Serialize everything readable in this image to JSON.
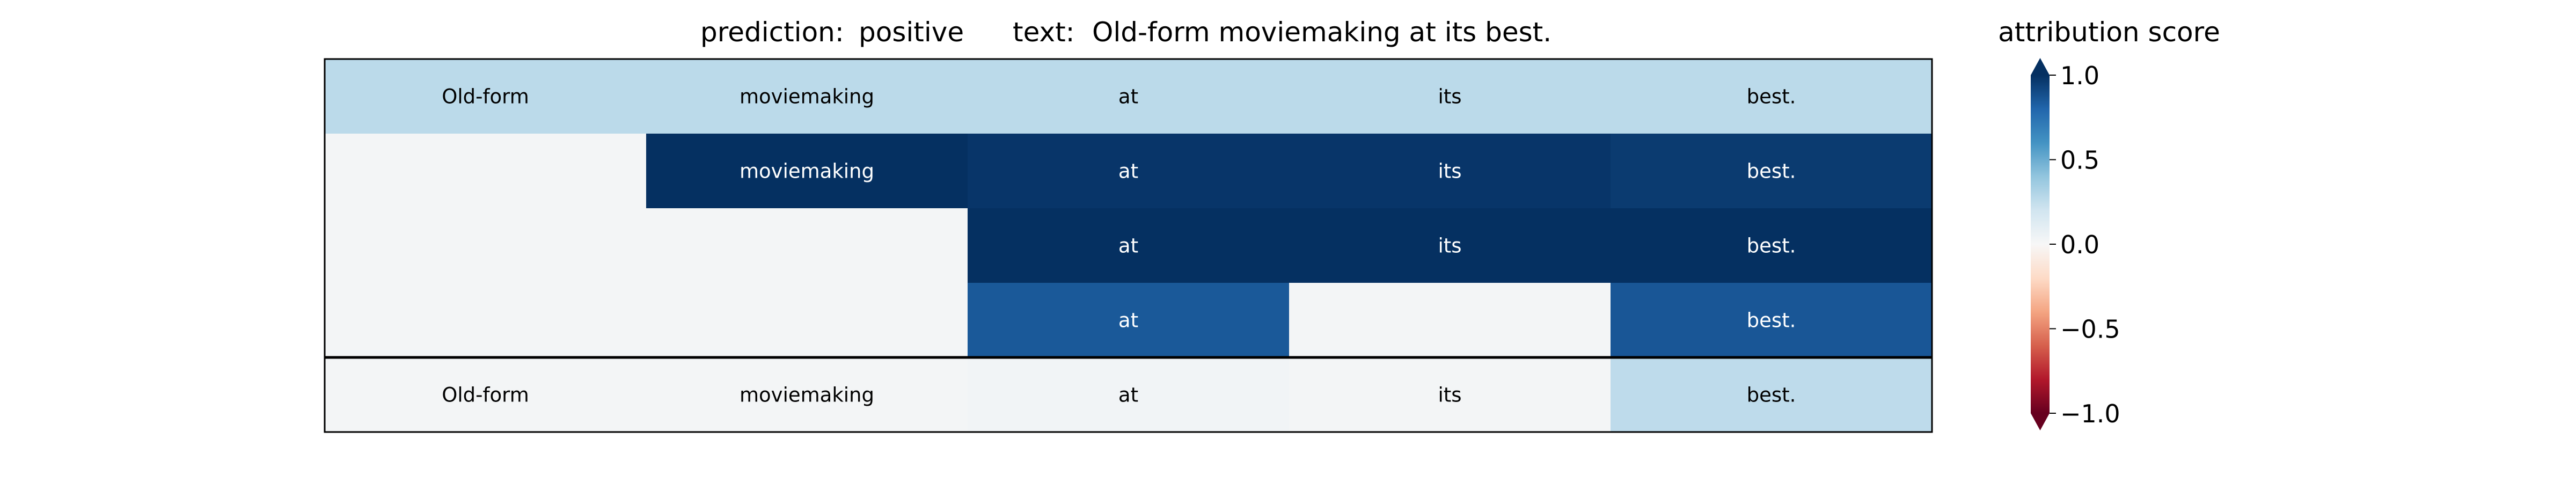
{
  "title": {
    "prediction_label": "prediction:",
    "prediction_value": "positive",
    "text_label": "text:",
    "text_value": "Old-form moviemaking at its best."
  },
  "colorbar": {
    "title": "attribution score",
    "cmap": "RdBu",
    "range": [
      -1.0,
      1.0
    ],
    "ticks": [
      "1.0",
      "0.5",
      "0.0",
      "−0.5",
      "−1.0"
    ],
    "tick_values": [
      1.0,
      0.5,
      0.0,
      -0.5,
      -1.0
    ],
    "extend": "both"
  },
  "chart_data": {
    "type": "heatmap",
    "tokens": [
      "Old-form",
      "moviemaking",
      "at",
      "its",
      "best."
    ],
    "rows": [
      {
        "values": [
          0.27,
          0.27,
          0.27,
          0.27,
          0.27
        ],
        "labels": [
          "Old-form",
          "moviemaking",
          "at",
          "its",
          "best."
        ]
      },
      {
        "values": [
          0.02,
          1.0,
          0.98,
          0.98,
          0.96
        ],
        "labels": [
          "",
          "moviemaking",
          "at",
          "its",
          "best."
        ]
      },
      {
        "values": [
          0.02,
          0.02,
          1.0,
          1.0,
          1.0
        ],
        "labels": [
          "",
          "",
          "at",
          "its",
          "best."
        ]
      },
      {
        "values": [
          0.02,
          0.02,
          0.85,
          0.02,
          0.86
        ],
        "labels": [
          "",
          "",
          "at",
          "",
          "best."
        ]
      },
      {
        "values": [
          0.02,
          0.02,
          0.03,
          0.02,
          0.26
        ],
        "labels": [
          "Old-form",
          "moviemaking",
          "at",
          "its",
          "best."
        ]
      }
    ],
    "separator_before_last_row": true,
    "vmin": -1.0,
    "vmax": 1.0
  }
}
